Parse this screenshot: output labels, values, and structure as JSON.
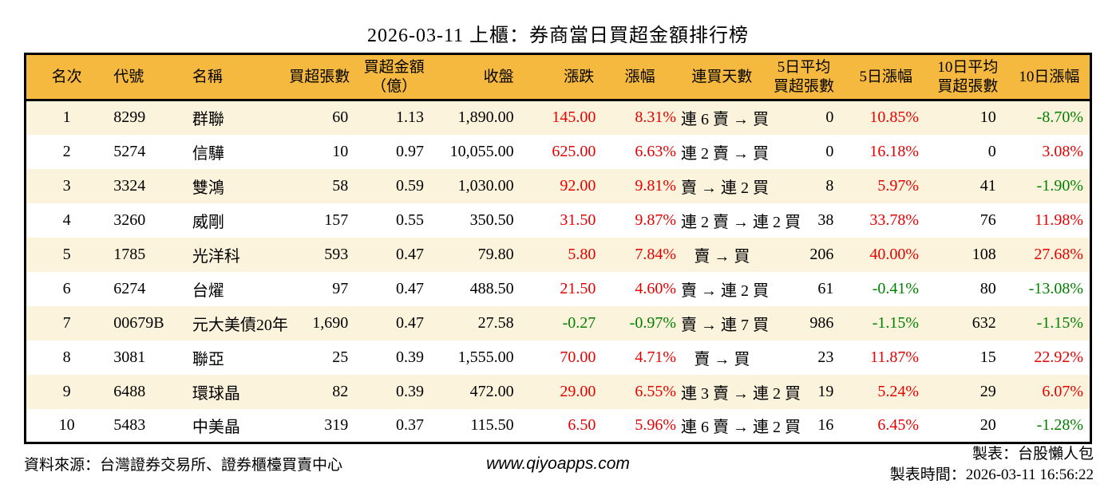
{
  "page": {
    "title": "2026-03-11 上櫃：券商當日買超金額排行榜"
  },
  "colors": {
    "header_bg": "#F6B93F",
    "row_alt_bg": "#FCF3DC",
    "up": "#E60000",
    "down": "#008000",
    "border": "#000000"
  },
  "table": {
    "columns": [
      {
        "key": "rank",
        "label": "名次"
      },
      {
        "key": "code",
        "label": "代號"
      },
      {
        "key": "name",
        "label": "名稱"
      },
      {
        "key": "net_buy_volume",
        "label": "買超張數"
      },
      {
        "key": "net_buy_amount",
        "label": "買超金額\n（億）"
      },
      {
        "key": "close",
        "label": "收盤"
      },
      {
        "key": "change",
        "label": "漲跌"
      },
      {
        "key": "change_pct",
        "label": "漲幅"
      },
      {
        "key": "streak",
        "label": "連買天數"
      },
      {
        "key": "avg5_volume",
        "label": "5日平均\n買超張數"
      },
      {
        "key": "pct_5d",
        "label": "5日漲幅"
      },
      {
        "key": "avg10_volume",
        "label": "10日平均\n買超張數"
      },
      {
        "key": "pct_10d",
        "label": "10日漲幅"
      }
    ],
    "signed_keys": [
      "change",
      "change_pct",
      "pct_5d",
      "pct_10d"
    ],
    "rows": [
      {
        "rank": "1",
        "code": "8299",
        "name": "群聯",
        "net_buy_volume": "60",
        "net_buy_amount": "1.13",
        "close": "1,890.00",
        "change": "145.00",
        "change_pct": "8.31%",
        "streak": "連 6 賣 → 買",
        "avg5_volume": "0",
        "pct_5d": "10.85%",
        "avg10_volume": "10",
        "pct_10d": "-8.70%"
      },
      {
        "rank": "2",
        "code": "5274",
        "name": "信驊",
        "net_buy_volume": "10",
        "net_buy_amount": "0.97",
        "close": "10,055.00",
        "change": "625.00",
        "change_pct": "6.63%",
        "streak": "連 2 賣 → 買",
        "avg5_volume": "0",
        "pct_5d": "16.18%",
        "avg10_volume": "0",
        "pct_10d": "3.08%"
      },
      {
        "rank": "3",
        "code": "3324",
        "name": "雙鴻",
        "net_buy_volume": "58",
        "net_buy_amount": "0.59",
        "close": "1,030.00",
        "change": "92.00",
        "change_pct": "9.81%",
        "streak": "賣 → 連 2 買",
        "avg5_volume": "8",
        "pct_5d": "5.97%",
        "avg10_volume": "41",
        "pct_10d": "-1.90%"
      },
      {
        "rank": "4",
        "code": "3260",
        "name": "威剛",
        "net_buy_volume": "157",
        "net_buy_amount": "0.55",
        "close": "350.50",
        "change": "31.50",
        "change_pct": "9.87%",
        "streak": "連 2 賣 → 連 2 買",
        "avg5_volume": "38",
        "pct_5d": "33.78%",
        "avg10_volume": "76",
        "pct_10d": "11.98%"
      },
      {
        "rank": "5",
        "code": "1785",
        "name": "光洋科",
        "net_buy_volume": "593",
        "net_buy_amount": "0.47",
        "close": "79.80",
        "change": "5.80",
        "change_pct": "7.84%",
        "streak": "賣 → 買",
        "avg5_volume": "206",
        "pct_5d": "40.00%",
        "avg10_volume": "108",
        "pct_10d": "27.68%"
      },
      {
        "rank": "6",
        "code": "6274",
        "name": "台燿",
        "net_buy_volume": "97",
        "net_buy_amount": "0.47",
        "close": "488.50",
        "change": "21.50",
        "change_pct": "4.60%",
        "streak": "賣 → 連 2 買",
        "avg5_volume": "61",
        "pct_5d": "-0.41%",
        "avg10_volume": "80",
        "pct_10d": "-13.08%"
      },
      {
        "rank": "7",
        "code": "00679B",
        "name": "元大美債20年",
        "net_buy_volume": "1,690",
        "net_buy_amount": "0.47",
        "close": "27.58",
        "change": "-0.27",
        "change_pct": "-0.97%",
        "streak": "賣 → 連 7 買",
        "avg5_volume": "986",
        "pct_5d": "-1.15%",
        "avg10_volume": "632",
        "pct_10d": "-1.15%"
      },
      {
        "rank": "8",
        "code": "3081",
        "name": "聯亞",
        "net_buy_volume": "25",
        "net_buy_amount": "0.39",
        "close": "1,555.00",
        "change": "70.00",
        "change_pct": "4.71%",
        "streak": "賣 → 買",
        "avg5_volume": "23",
        "pct_5d": "11.87%",
        "avg10_volume": "15",
        "pct_10d": "22.92%"
      },
      {
        "rank": "9",
        "code": "6488",
        "name": "環球晶",
        "net_buy_volume": "82",
        "net_buy_amount": "0.39",
        "close": "472.00",
        "change": "29.00",
        "change_pct": "6.55%",
        "streak": "連 3 賣 → 連 2 買",
        "avg5_volume": "19",
        "pct_5d": "5.24%",
        "avg10_volume": "29",
        "pct_10d": "6.07%"
      },
      {
        "rank": "10",
        "code": "5483",
        "name": "中美晶",
        "net_buy_volume": "319",
        "net_buy_amount": "0.37",
        "close": "115.50",
        "change": "6.50",
        "change_pct": "5.96%",
        "streak": "連 6 賣 → 連 2 買",
        "avg5_volume": "16",
        "pct_5d": "6.45%",
        "avg10_volume": "20",
        "pct_10d": "-1.28%"
      }
    ]
  },
  "footer": {
    "source": "資料來源：台灣證券交易所、證券櫃檯買賣中心",
    "website": "www.qiyoapps.com",
    "author": "製表：台股懶人包",
    "generated": "製表時間：2026-03-11 16:56:22"
  }
}
